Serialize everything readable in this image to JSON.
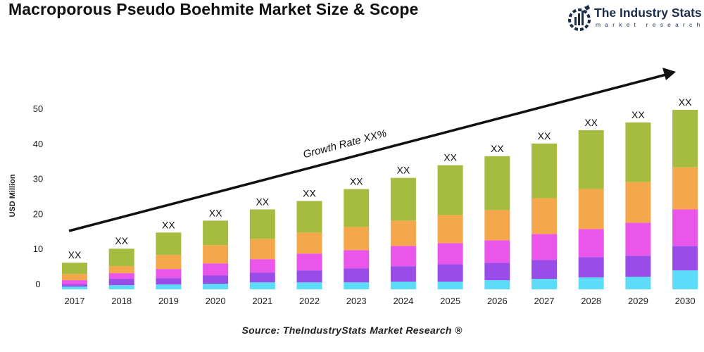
{
  "title": "Macroporous Pseudo Boehmite Market Size & Scope",
  "logo": {
    "name": "The Industry Stats",
    "tagline": "market research"
  },
  "source": "Source: TheIndustryStats Market Research ®",
  "chart_data": {
    "type": "bar",
    "stacked": true,
    "title": "",
    "xlabel": "",
    "ylabel": "USD Million",
    "ylim": [
      0,
      50
    ],
    "yticks": [
      0,
      10,
      20,
      30,
      40,
      50
    ],
    "grid": false,
    "categories": [
      "2017",
      "2018",
      "2019",
      "2020",
      "2021",
      "2022",
      "2023",
      "2024",
      "2025",
      "2026",
      "2027",
      "2028",
      "2029",
      "2030"
    ],
    "bar_labels": [
      "XX",
      "XX",
      "XX",
      "XX",
      "XX",
      "XX",
      "XX",
      "XX",
      "XX",
      "XX",
      "XX",
      "XX",
      "XX",
      "XX"
    ],
    "series": [
      {
        "color": "#5ddcf9",
        "values": [
          0.8,
          1.2,
          1.4,
          1.6,
          2.0,
          2.0,
          2.0,
          2.2,
          2.2,
          2.6,
          3.0,
          3.4,
          3.6,
          5.4
        ]
      },
      {
        "color": "#9a4ce8",
        "values": [
          0.6,
          1.8,
          1.8,
          2.4,
          2.8,
          3.4,
          4.0,
          4.4,
          5.0,
          5.0,
          5.4,
          5.8,
          6.0,
          7.0
        ]
      },
      {
        "color": "#ea55ea",
        "values": [
          1.2,
          1.6,
          2.6,
          3.4,
          3.8,
          4.8,
          5.2,
          5.8,
          6.0,
          6.4,
          7.4,
          8.0,
          9.4,
          10.4
        ]
      },
      {
        "color": "#f4a84b",
        "values": [
          1.8,
          2.0,
          4.0,
          5.2,
          5.8,
          6.0,
          6.6,
          7.2,
          8.0,
          8.6,
          10.2,
          11.4,
          11.6,
          12.0
        ]
      },
      {
        "color": "#a6bc41",
        "values": [
          3.2,
          5.0,
          6.4,
          7.0,
          8.4,
          9.0,
          10.8,
          12.2,
          14.2,
          15.4,
          15.6,
          16.8,
          17.0,
          16.4
        ]
      }
    ],
    "annotation": "Growth Rate XX%"
  }
}
